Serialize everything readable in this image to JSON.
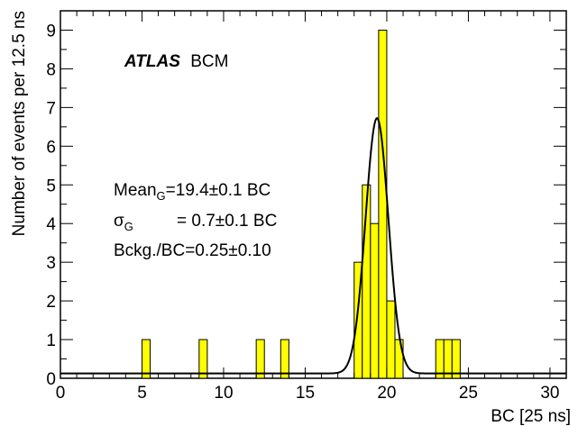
{
  "chart_data": {
    "type": "bar",
    "xlabel": "BC [25 ns]",
    "ylabel": "Number of events per 12.5 ns",
    "xlim": [
      0,
      31
    ],
    "ylim": [
      0,
      9.5
    ],
    "bin_width": 0.5,
    "x_ticks": [
      "0",
      "5",
      "10",
      "15",
      "20",
      "25",
      "30"
    ],
    "x_tick_values": [
      0,
      5,
      10,
      15,
      20,
      25,
      30
    ],
    "y_ticks": [
      "0",
      "1",
      "2",
      "3",
      "4",
      "5",
      "6",
      "7",
      "8",
      "9"
    ],
    "y_tick_values": [
      0,
      1,
      2,
      3,
      4,
      5,
      6,
      7,
      8,
      9
    ],
    "bins": [
      {
        "x": 5.0,
        "value": 1
      },
      {
        "x": 8.5,
        "value": 1
      },
      {
        "x": 12.0,
        "value": 1
      },
      {
        "x": 13.5,
        "value": 1
      },
      {
        "x": 18.0,
        "value": 3
      },
      {
        "x": 18.5,
        "value": 5
      },
      {
        "x": 19.0,
        "value": 4
      },
      {
        "x": 19.5,
        "value": 9
      },
      {
        "x": 20.0,
        "value": 2
      },
      {
        "x": 20.5,
        "value": 1
      },
      {
        "x": 23.0,
        "value": 1
      },
      {
        "x": 23.5,
        "value": 1
      },
      {
        "x": 24.0,
        "value": 1
      }
    ],
    "fit": {
      "mean": 19.4,
      "sigma": 0.7,
      "amplitude": 6.6,
      "background": 0.125
    },
    "colors": {
      "bar_fill": "#ffff00",
      "bar_stroke": "#000000",
      "fit_line": "#000000"
    }
  },
  "annotations": {
    "experiment": "ATLAS",
    "detector": "BCM",
    "mean_base": "Mean",
    "mean_sub": "G",
    "mean_rest": "=19.4±0.1 BC",
    "sigma_base": "σ",
    "sigma_sub": "G",
    "sigma_rest": "= 0.7±0.1 BC",
    "bckg": "Bckg./BC=0.25±0.10"
  }
}
